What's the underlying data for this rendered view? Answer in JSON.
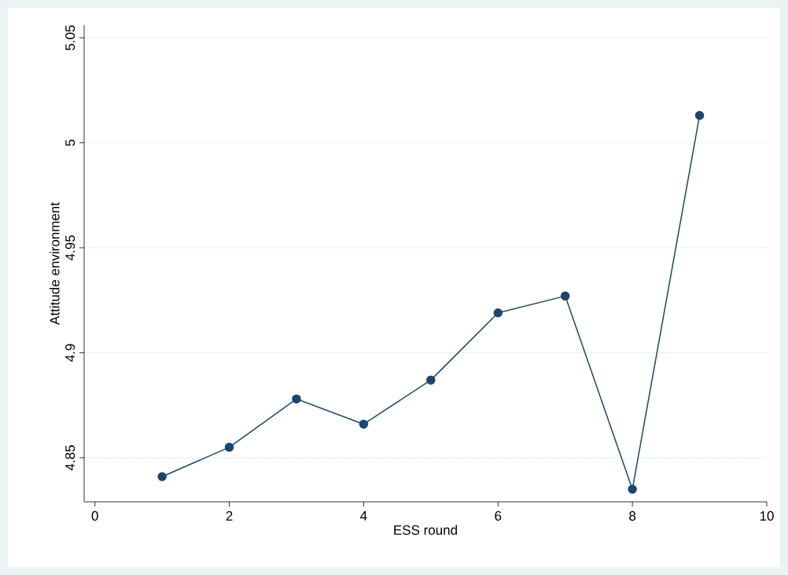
{
  "chart_data": {
    "type": "line",
    "xlabel": "ESS round",
    "ylabel": "Attitude environment",
    "x": [
      1,
      2,
      3,
      4,
      5,
      6,
      7,
      8,
      9
    ],
    "values": [
      4.841,
      4.855,
      4.878,
      4.866,
      4.887,
      4.919,
      4.927,
      4.835,
      5.013
    ],
    "color": "#1a476f",
    "xlim": [
      -0.16,
      10
    ],
    "ylim": [
      4.829,
      5.056
    ],
    "xticks": [
      0,
      2,
      4,
      6,
      8,
      10
    ],
    "yticks": [
      4.85,
      4.9,
      4.95,
      5,
      5.05
    ],
    "grid": "y",
    "marker": "circle",
    "line_style": "solid"
  }
}
